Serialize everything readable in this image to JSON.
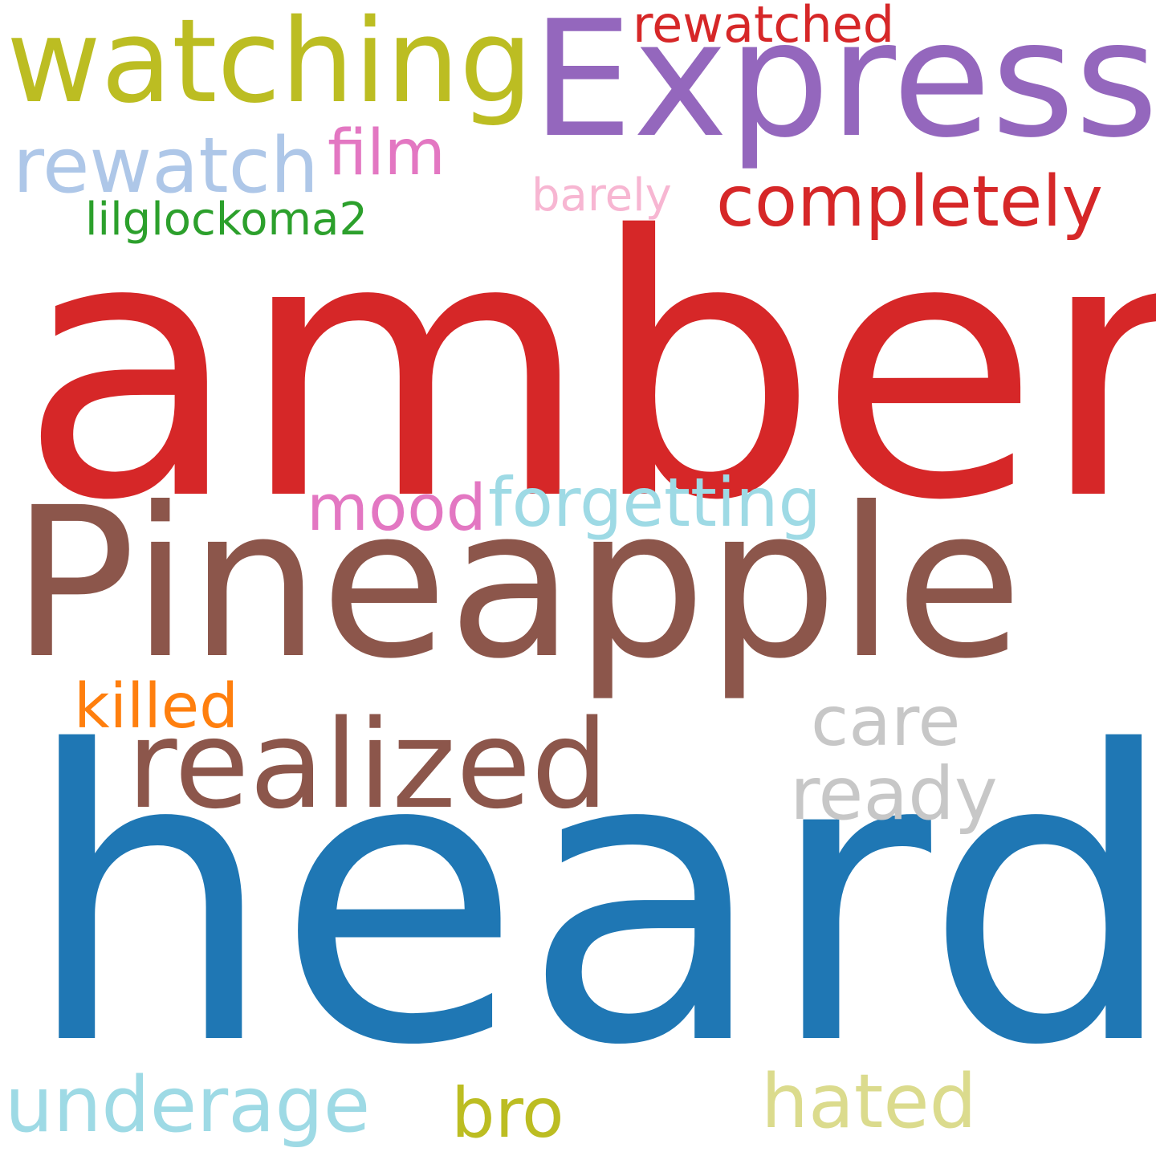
{
  "words": [
    {
      "text": "amber",
      "color": "#d62728"
    },
    {
      "text": "heard",
      "color": "#1f77b4"
    },
    {
      "text": "Pineapple",
      "color": "#8c564b"
    },
    {
      "text": "Express",
      "color": "#9467bd"
    },
    {
      "text": "watching",
      "color": "#bcbd22"
    },
    {
      "text": "realized",
      "color": "#8c564b"
    },
    {
      "text": "completely",
      "color": "#d62728"
    },
    {
      "text": "rewatch",
      "color": "#aec7e8"
    },
    {
      "text": "film",
      "color": "#e377c2"
    },
    {
      "text": "rewatched",
      "color": "#d62728"
    },
    {
      "text": "barely",
      "color": "#f7b6d2"
    },
    {
      "text": "lilglockoma2",
      "color": "#2ca02c"
    },
    {
      "text": "forgetting",
      "color": "#9edae5"
    },
    {
      "text": "mood",
      "color": "#e377c2"
    },
    {
      "text": "killed",
      "color": "#ff7f0e"
    },
    {
      "text": "care",
      "color": "#c7c7c7"
    },
    {
      "text": "ready",
      "color": "#c7c7c7"
    },
    {
      "text": "underage",
      "color": "#9edae5"
    },
    {
      "text": "bro",
      "color": "#bcbd22"
    },
    {
      "text": "hated",
      "color": "#dbdb8d"
    }
  ]
}
